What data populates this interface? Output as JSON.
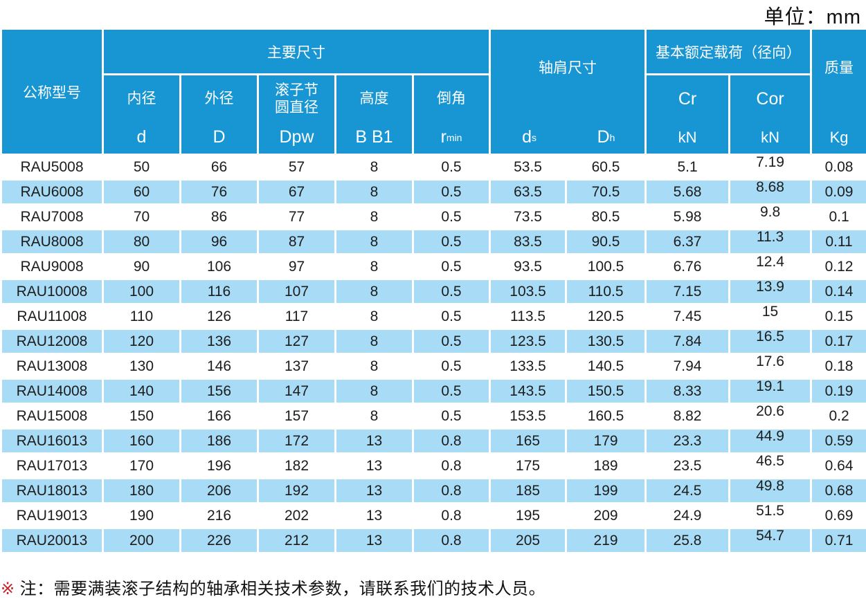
{
  "unit_label": "单位：mm",
  "colors": {
    "header-blue": "#1896D3",
    "row-blue": "#A8DCF6",
    "note-red": "#C1272D",
    "text-dark": "#1C1C1C"
  },
  "table": {
    "col_keys": [
      "model",
      "d",
      "D",
      "Dpw",
      "B",
      "r-min",
      "ds",
      "Dh",
      "Cr",
      "Cor",
      "mass"
    ],
    "header": {
      "model_col": "公称型号",
      "main_dims": {
        "title": "主要尺寸",
        "cols": [
          {
            "name": "内径",
            "sym": "d"
          },
          {
            "name": "外径",
            "sym": "D"
          },
          {
            "name": "滚子节",
            "name2": "圆直径",
            "sym": "Dpw"
          },
          {
            "name": "高度",
            "sym": "B B1"
          },
          {
            "name": "倒角",
            "sym": "r",
            "sym_sub": "min"
          }
        ]
      },
      "shoulder": {
        "title": "轴肩尺寸",
        "cols": [
          {
            "sym": "d",
            "sym_sub": "s"
          },
          {
            "sym": "D",
            "sym_sub": "h"
          }
        ]
      },
      "load": {
        "title": "基本额定载荷（径向）",
        "cols": [
          {
            "sym": "Cr",
            "unit": "kN"
          },
          {
            "sym": "Cor",
            "unit": "kN"
          }
        ]
      },
      "mass": {
        "title": "质量",
        "unit": "Kg"
      }
    },
    "rows": [
      [
        "RAU5008",
        "50",
        "66",
        "57",
        "8",
        "0.5",
        "53.5",
        "60.5",
        "5.1",
        "7.19",
        "0.08"
      ],
      [
        "RAU6008",
        "60",
        "76",
        "67",
        "8",
        "0.5",
        "63.5",
        "70.5",
        "5.68",
        "8.68",
        "0.09"
      ],
      [
        "RAU7008",
        "70",
        "86",
        "77",
        "8",
        "0.5",
        "73.5",
        "80.5",
        "5.98",
        "9.8",
        "0.1"
      ],
      [
        "RAU8008",
        "80",
        "96",
        "87",
        "8",
        "0.5",
        "83.5",
        "90.5",
        "6.37",
        "11.3",
        "0.11"
      ],
      [
        "RAU9008",
        "90",
        "106",
        "97",
        "8",
        "0.5",
        "93.5",
        "100.5",
        "6.76",
        "12.4",
        "0.12"
      ],
      [
        "RAU10008",
        "100",
        "116",
        "107",
        "8",
        "0.5",
        "103.5",
        "110.5",
        "7.15",
        "13.9",
        "0.14"
      ],
      [
        "RAU11008",
        "110",
        "126",
        "117",
        "8",
        "0.5",
        "113.5",
        "120.5",
        "7.45",
        "15",
        "0.15"
      ],
      [
        "RAU12008",
        "120",
        "136",
        "127",
        "8",
        "0.5",
        "123.5",
        "130.5",
        "7.84",
        "16.5",
        "0.17"
      ],
      [
        "RAU13008",
        "130",
        "146",
        "137",
        "8",
        "0.5",
        "133.5",
        "140.5",
        "7.94",
        "17.6",
        "0.18"
      ],
      [
        "RAU14008",
        "140",
        "156",
        "147",
        "8",
        "0.5",
        "143.5",
        "150.5",
        "8.33",
        "19.1",
        "0.19"
      ],
      [
        "RAU15008",
        "150",
        "166",
        "157",
        "8",
        "0.5",
        "153.5",
        "160.5",
        "8.82",
        "20.6",
        "0.2"
      ],
      [
        "RAU16013",
        "160",
        "186",
        "172",
        "13",
        "0.8",
        "165",
        "179",
        "23.3",
        "44.9",
        "0.59"
      ],
      [
        "RAU17013",
        "170",
        "196",
        "182",
        "13",
        "0.8",
        "175",
        "189",
        "23.5",
        "46.5",
        "0.64"
      ],
      [
        "RAU18013",
        "180",
        "206",
        "192",
        "13",
        "0.8",
        "185",
        "199",
        "24.5",
        "49.8",
        "0.68"
      ],
      [
        "RAU19013",
        "190",
        "216",
        "202",
        "13",
        "0.8",
        "195",
        "209",
        "24.9",
        "51.5",
        "0.69"
      ],
      [
        "RAU20013",
        "200",
        "226",
        "212",
        "13",
        "0.8",
        "205",
        "219",
        "25.8",
        "54.7",
        "0.71"
      ]
    ]
  },
  "note": {
    "marker": "※",
    "text": "注：需要满装滚子结构的轴承相关技术参数，请联系我们的技术人员。"
  }
}
